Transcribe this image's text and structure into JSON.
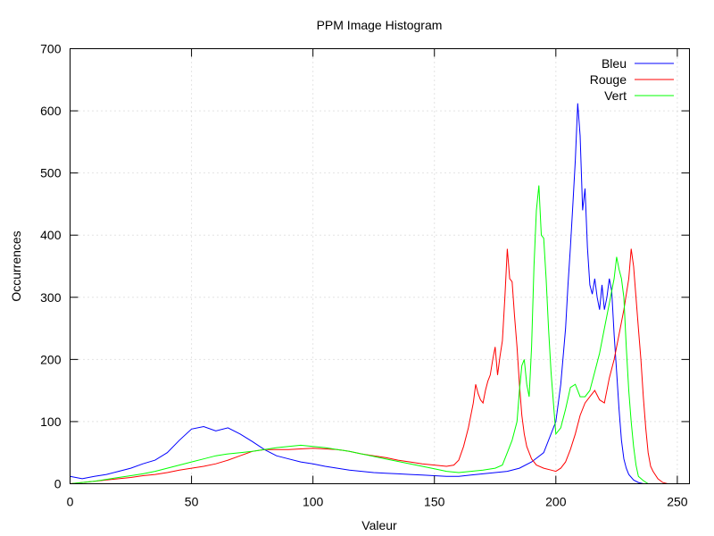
{
  "chart_data": {
    "type": "line",
    "title": "PPM Image Histogram",
    "xlabel": "Valeur",
    "ylabel": "Occurrences",
    "xlim": [
      0,
      255
    ],
    "ylim": [
      0,
      700
    ],
    "xticks": [
      0,
      50,
      100,
      150,
      200,
      250
    ],
    "yticks": [
      0,
      100,
      200,
      300,
      400,
      500,
      600,
      700
    ],
    "grid": true,
    "legend_position": "top-right",
    "series": [
      {
        "name": "Bleu",
        "color": "#0000ff",
        "points": [
          [
            0,
            12
          ],
          [
            5,
            8
          ],
          [
            10,
            12
          ],
          [
            15,
            15
          ],
          [
            20,
            20
          ],
          [
            25,
            25
          ],
          [
            30,
            32
          ],
          [
            35,
            38
          ],
          [
            40,
            50
          ],
          [
            45,
            70
          ],
          [
            50,
            88
          ],
          [
            55,
            92
          ],
          [
            60,
            85
          ],
          [
            65,
            90
          ],
          [
            70,
            80
          ],
          [
            75,
            68
          ],
          [
            80,
            55
          ],
          [
            85,
            45
          ],
          [
            90,
            40
          ],
          [
            95,
            35
          ],
          [
            100,
            32
          ],
          [
            105,
            28
          ],
          [
            110,
            25
          ],
          [
            115,
            22
          ],
          [
            120,
            20
          ],
          [
            125,
            18
          ],
          [
            130,
            17
          ],
          [
            135,
            16
          ],
          [
            140,
            15
          ],
          [
            145,
            14
          ],
          [
            150,
            13
          ],
          [
            155,
            12
          ],
          [
            160,
            12
          ],
          [
            165,
            14
          ],
          [
            170,
            16
          ],
          [
            175,
            18
          ],
          [
            180,
            20
          ],
          [
            185,
            25
          ],
          [
            190,
            35
          ],
          [
            195,
            50
          ],
          [
            200,
            100
          ],
          [
            202,
            160
          ],
          [
            204,
            250
          ],
          [
            205,
            320
          ],
          [
            206,
            380
          ],
          [
            207,
            450
          ],
          [
            208,
            520
          ],
          [
            209,
            612
          ],
          [
            210,
            560
          ],
          [
            211,
            440
          ],
          [
            212,
            475
          ],
          [
            213,
            380
          ],
          [
            214,
            320
          ],
          [
            215,
            305
          ],
          [
            216,
            330
          ],
          [
            217,
            300
          ],
          [
            218,
            280
          ],
          [
            219,
            320
          ],
          [
            220,
            280
          ],
          [
            221,
            300
          ],
          [
            222,
            330
          ],
          [
            223,
            310
          ],
          [
            224,
            240
          ],
          [
            225,
            180
          ],
          [
            226,
            120
          ],
          [
            227,
            70
          ],
          [
            228,
            40
          ],
          [
            229,
            25
          ],
          [
            230,
            15
          ],
          [
            232,
            6
          ],
          [
            234,
            2
          ],
          [
            236,
            0
          ],
          [
            240,
            0
          ],
          [
            245,
            0
          ],
          [
            255,
            0
          ]
        ]
      },
      {
        "name": "Rouge",
        "color": "#ff0000",
        "points": [
          [
            0,
            0
          ],
          [
            5,
            2
          ],
          [
            10,
            4
          ],
          [
            15,
            6
          ],
          [
            20,
            8
          ],
          [
            25,
            10
          ],
          [
            30,
            13
          ],
          [
            35,
            15
          ],
          [
            40,
            18
          ],
          [
            45,
            22
          ],
          [
            50,
            25
          ],
          [
            55,
            28
          ],
          [
            60,
            32
          ],
          [
            65,
            38
          ],
          [
            70,
            45
          ],
          [
            75,
            52
          ],
          [
            80,
            55
          ],
          [
            85,
            55
          ],
          [
            90,
            55
          ],
          [
            95,
            56
          ],
          [
            100,
            57
          ],
          [
            105,
            56
          ],
          [
            110,
            55
          ],
          [
            115,
            52
          ],
          [
            120,
            48
          ],
          [
            125,
            45
          ],
          [
            130,
            42
          ],
          [
            135,
            38
          ],
          [
            140,
            35
          ],
          [
            145,
            32
          ],
          [
            150,
            30
          ],
          [
            155,
            28
          ],
          [
            158,
            30
          ],
          [
            160,
            38
          ],
          [
            162,
            60
          ],
          [
            164,
            90
          ],
          [
            166,
            130
          ],
          [
            167,
            160
          ],
          [
            168,
            145
          ],
          [
            169,
            135
          ],
          [
            170,
            130
          ],
          [
            171,
            150
          ],
          [
            172,
            165
          ],
          [
            173,
            175
          ],
          [
            174,
            200
          ],
          [
            175,
            220
          ],
          [
            176,
            175
          ],
          [
            177,
            205
          ],
          [
            178,
            230
          ],
          [
            179,
            300
          ],
          [
            180,
            378
          ],
          [
            181,
            330
          ],
          [
            182,
            325
          ],
          [
            183,
            270
          ],
          [
            184,
            220
          ],
          [
            185,
            160
          ],
          [
            186,
            110
          ],
          [
            187,
            80
          ],
          [
            188,
            60
          ],
          [
            190,
            40
          ],
          [
            192,
            30
          ],
          [
            195,
            25
          ],
          [
            198,
            22
          ],
          [
            200,
            20
          ],
          [
            202,
            25
          ],
          [
            204,
            35
          ],
          [
            206,
            55
          ],
          [
            208,
            80
          ],
          [
            210,
            110
          ],
          [
            212,
            130
          ],
          [
            214,
            140
          ],
          [
            216,
            150
          ],
          [
            218,
            135
          ],
          [
            220,
            130
          ],
          [
            222,
            170
          ],
          [
            224,
            200
          ],
          [
            226,
            240
          ],
          [
            228,
            280
          ],
          [
            230,
            330
          ],
          [
            231,
            378
          ],
          [
            232,
            350
          ],
          [
            233,
            300
          ],
          [
            234,
            250
          ],
          [
            235,
            200
          ],
          [
            236,
            140
          ],
          [
            237,
            90
          ],
          [
            238,
            50
          ],
          [
            239,
            28
          ],
          [
            240,
            20
          ],
          [
            242,
            8
          ],
          [
            244,
            2
          ],
          [
            246,
            0
          ],
          [
            250,
            0
          ],
          [
            255,
            0
          ]
        ]
      },
      {
        "name": "Vert",
        "color": "#00ff00",
        "points": [
          [
            0,
            0
          ],
          [
            5,
            2
          ],
          [
            10,
            4
          ],
          [
            15,
            7
          ],
          [
            20,
            10
          ],
          [
            25,
            13
          ],
          [
            30,
            16
          ],
          [
            35,
            20
          ],
          [
            40,
            25
          ],
          [
            45,
            30
          ],
          [
            50,
            35
          ],
          [
            55,
            40
          ],
          [
            60,
            45
          ],
          [
            65,
            48
          ],
          [
            70,
            50
          ],
          [
            75,
            52
          ],
          [
            80,
            55
          ],
          [
            85,
            58
          ],
          [
            90,
            60
          ],
          [
            95,
            62
          ],
          [
            100,
            60
          ],
          [
            105,
            58
          ],
          [
            110,
            55
          ],
          [
            115,
            52
          ],
          [
            120,
            48
          ],
          [
            125,
            44
          ],
          [
            130,
            40
          ],
          [
            135,
            36
          ],
          [
            140,
            32
          ],
          [
            145,
            28
          ],
          [
            150,
            24
          ],
          [
            155,
            20
          ],
          [
            160,
            18
          ],
          [
            165,
            20
          ],
          [
            170,
            22
          ],
          [
            175,
            25
          ],
          [
            178,
            30
          ],
          [
            180,
            50
          ],
          [
            182,
            70
          ],
          [
            184,
            100
          ],
          [
            185,
            150
          ],
          [
            186,
            190
          ],
          [
            187,
            200
          ],
          [
            188,
            160
          ],
          [
            189,
            140
          ],
          [
            190,
            220
          ],
          [
            191,
            350
          ],
          [
            192,
            440
          ],
          [
            193,
            480
          ],
          [
            194,
            400
          ],
          [
            195,
            395
          ],
          [
            196,
            330
          ],
          [
            197,
            250
          ],
          [
            198,
            180
          ],
          [
            199,
            130
          ],
          [
            200,
            80
          ],
          [
            202,
            90
          ],
          [
            204,
            120
          ],
          [
            206,
            155
          ],
          [
            208,
            160
          ],
          [
            210,
            140
          ],
          [
            212,
            140
          ],
          [
            214,
            150
          ],
          [
            216,
            180
          ],
          [
            218,
            210
          ],
          [
            220,
            250
          ],
          [
            222,
            290
          ],
          [
            224,
            330
          ],
          [
            225,
            365
          ],
          [
            226,
            345
          ],
          [
            227,
            330
          ],
          [
            228,
            300
          ],
          [
            229,
            220
          ],
          [
            230,
            150
          ],
          [
            231,
            100
          ],
          [
            232,
            60
          ],
          [
            233,
            30
          ],
          [
            234,
            12
          ],
          [
            236,
            5
          ],
          [
            238,
            0
          ],
          [
            245,
            0
          ],
          [
            255,
            0
          ]
        ]
      }
    ]
  }
}
